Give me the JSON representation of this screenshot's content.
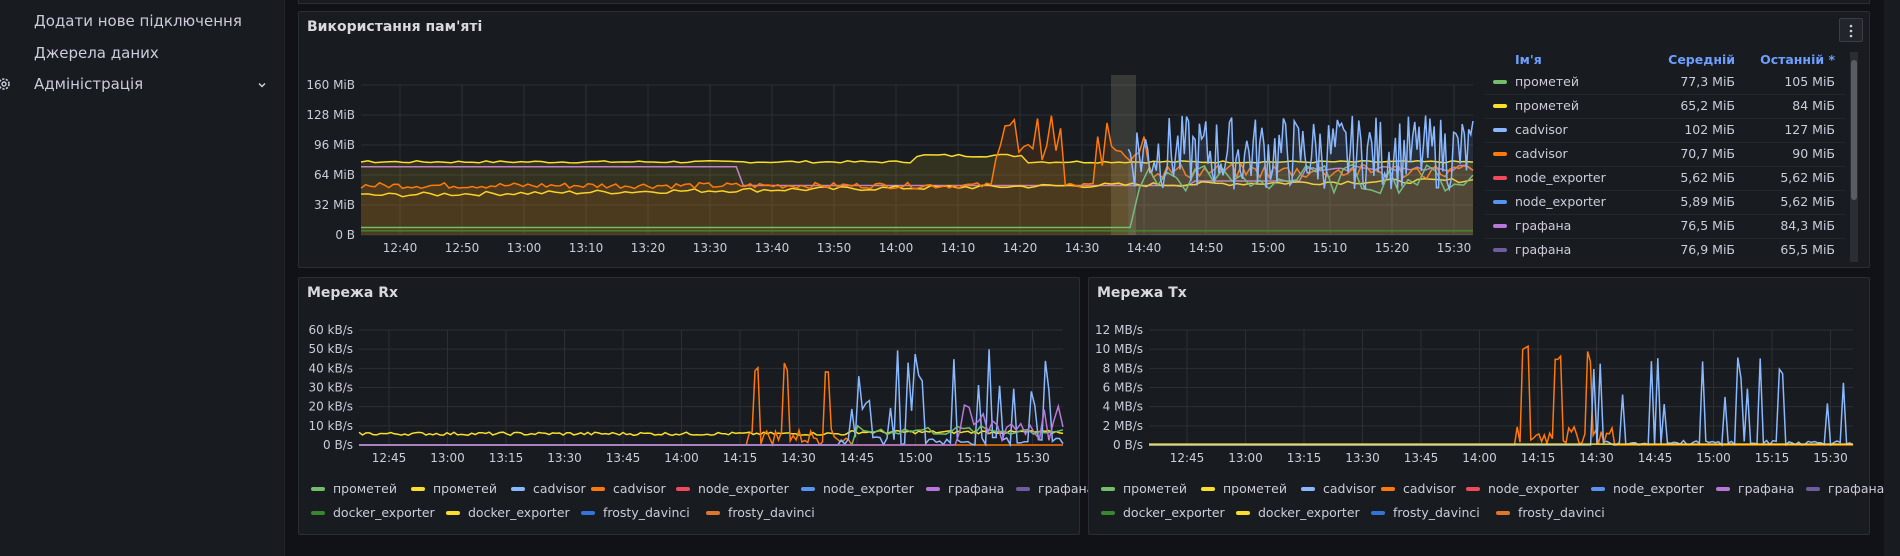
{
  "sidebar": {
    "add_connection": "Додати нове підключення",
    "data_sources": "Джерела даних",
    "administration": "Адміністрація"
  },
  "memory_panel": {
    "title": "Використання пам'яті",
    "y_ticks": [
      "160 MiB",
      "128 MiB",
      "96 MiB",
      "64 MiB",
      "32 MiB",
      "0 B"
    ],
    "x_ticks": [
      "12:40",
      "12:50",
      "13:00",
      "13:10",
      "13:20",
      "13:30",
      "13:40",
      "13:50",
      "14:00",
      "14:10",
      "14:20",
      "14:30",
      "14:40",
      "14:50",
      "15:00",
      "15:10",
      "15:20",
      "15:30"
    ],
    "legend_headers": {
      "name": "Ім'я",
      "mean": "Середній",
      "last": "Останній *"
    },
    "legend_rows": [
      {
        "name": "прометей",
        "mean": "77,3 МіБ",
        "last": "105 МіБ",
        "color": "#73bf69"
      },
      {
        "name": "прометей",
        "mean": "65,2 МіБ",
        "last": "84 МіБ",
        "color": "#fade2a"
      },
      {
        "name": "cadvisor",
        "mean": "102 МіБ",
        "last": "127 МіБ",
        "color": "#8ab8ff"
      },
      {
        "name": "cadvisor",
        "mean": "70,7 МіБ",
        "last": "90 МіБ",
        "color": "#ff780a"
      },
      {
        "name": "node_exporter",
        "mean": "5,62 МіБ",
        "last": "5,62 МіБ",
        "color": "#f2495c"
      },
      {
        "name": "node_exporter",
        "mean": "5,89 МіБ",
        "last": "5,62 МіБ",
        "color": "#5794f2"
      },
      {
        "name": "графана",
        "mean": "76,5 МіБ",
        "last": "84,3 МіБ",
        "color": "#b877d9"
      },
      {
        "name": "графана",
        "mean": "76,9 МіБ",
        "last": "65,5 МіБ",
        "color": "#705da0"
      }
    ]
  },
  "rx_panel": {
    "title": "Мережа Rx",
    "y_ticks": [
      "60 kB/s",
      "50 kB/s",
      "40 kB/s",
      "30 kB/s",
      "20 kB/s",
      "10 kB/s",
      "0 B/s"
    ],
    "x_ticks": [
      "12:45",
      "13:00",
      "13:15",
      "13:30",
      "13:45",
      "14:00",
      "14:15",
      "14:30",
      "14:45",
      "15:00",
      "15:15",
      "15:30"
    ]
  },
  "tx_panel": {
    "title": "Мережа Tx",
    "y_ticks": [
      "12 MB/s",
      "10 MB/s",
      "8 MB/s",
      "6 MB/s",
      "4 MB/s",
      "2 MB/s",
      "0 B/s"
    ],
    "x_ticks": [
      "12:45",
      "13:00",
      "13:15",
      "13:30",
      "13:45",
      "14:00",
      "14:15",
      "14:30",
      "14:45",
      "15:00",
      "15:15",
      "15:30"
    ]
  },
  "net_legend": [
    {
      "label": "прометей",
      "color": "#73bf69"
    },
    {
      "label": "прометей",
      "color": "#fade2a"
    },
    {
      "label": "cadvisor",
      "color": "#8ab8ff"
    },
    {
      "label": "cadvisor",
      "color": "#ff780a"
    },
    {
      "label": "node_exporter",
      "color": "#f2495c"
    },
    {
      "label": "node_exporter",
      "color": "#5794f2"
    },
    {
      "label": "графана",
      "color": "#b877d9"
    },
    {
      "label": "графана",
      "color": "#705da0"
    },
    {
      "label": "docker_exporter",
      "color": "#37872d"
    },
    {
      "label": "docker_exporter",
      "color": "#fade2a"
    },
    {
      "label": "frosty_davinci",
      "color": "#3274d9"
    },
    {
      "label": "frosty_davinci",
      "color": "#e0752d"
    }
  ]
}
